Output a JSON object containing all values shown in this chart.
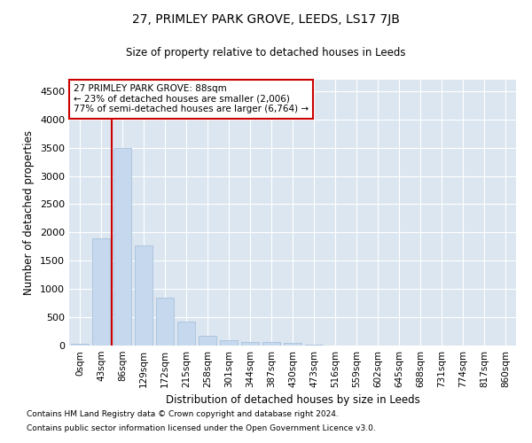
{
  "title_line1": "27, PRIMLEY PARK GROVE, LEEDS, LS17 7JB",
  "title_line2": "Size of property relative to detached houses in Leeds",
  "xlabel": "Distribution of detached houses by size in Leeds",
  "ylabel": "Number of detached properties",
  "bar_color": "#c5d8ed",
  "bar_edgecolor": "#a0bcd8",
  "background_color": "#dce6f1",
  "annotation_box_edgecolor": "#cc0000",
  "property_line_color": "#cc0000",
  "categories": [
    "0sqm",
    "43sqm",
    "86sqm",
    "129sqm",
    "172sqm",
    "215sqm",
    "258sqm",
    "301sqm",
    "344sqm",
    "387sqm",
    "430sqm",
    "473sqm",
    "516sqm",
    "559sqm",
    "602sqm",
    "645sqm",
    "688sqm",
    "731sqm",
    "774sqm",
    "817sqm",
    "860sqm"
  ],
  "bar_heights": [
    25,
    1900,
    3500,
    1770,
    840,
    430,
    165,
    100,
    65,
    55,
    50,
    10,
    5,
    3,
    2,
    2,
    1,
    1,
    1,
    1,
    1
  ],
  "ylim": [
    0,
    4700
  ],
  "yticks": [
    0,
    500,
    1000,
    1500,
    2000,
    2500,
    3000,
    3500,
    4000,
    4500
  ],
  "property_line_x": 1.5,
  "annotation_title": "27 PRIMLEY PARK GROVE: 88sqm",
  "annotation_line2": "← 23% of detached houses are smaller (2,006)",
  "annotation_line3": "77% of semi-detached houses are larger (6,764) →",
  "footnote_line1": "Contains HM Land Registry data © Crown copyright and database right 2024.",
  "footnote_line2": "Contains public sector information licensed under the Open Government Licence v3.0.",
  "fig_width": 6.0,
  "fig_height": 5.0,
  "dpi": 100
}
